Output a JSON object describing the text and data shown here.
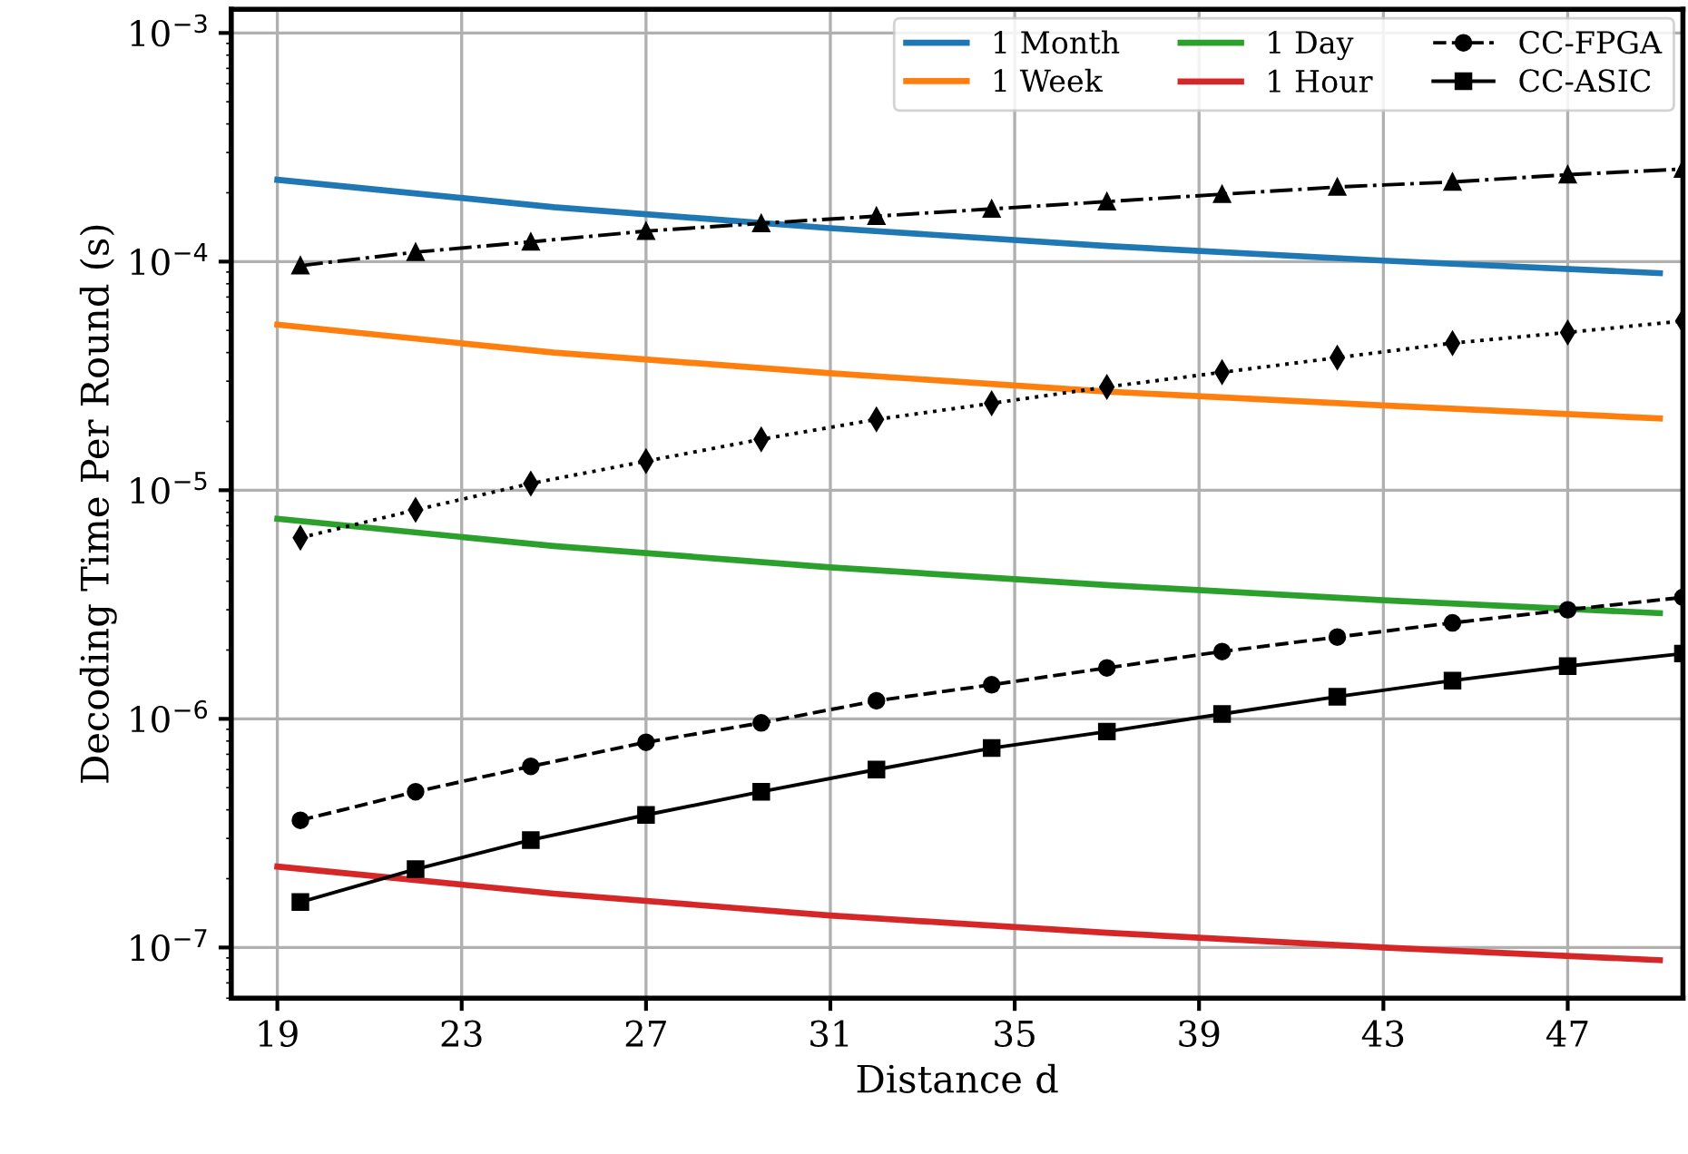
{
  "chart_data": {
    "type": "line",
    "xlabel": "Distance d",
    "ylabel": "Decoding Time Per Round (s)",
    "log": "y",
    "xlim": [
      18,
      49.5
    ],
    "xticks": [
      19,
      23,
      27,
      31,
      35,
      39,
      43,
      47
    ],
    "ylim": [
      6e-08,
      0.00127
    ],
    "yticks": [
      {
        "value": 1e-07,
        "label": "10$^{−7}$"
      },
      {
        "value": 1e-06,
        "label": "10$^{−6}$"
      },
      {
        "value": 1e-05,
        "label": "10$^{−5}$"
      },
      {
        "value": 0.0001,
        "label": "10$^{−4}$"
      },
      {
        "value": 0.001,
        "label": "10$^{−3}$"
      }
    ],
    "grid": true,
    "legend": "top right",
    "series": [
      {
        "name": "1 Month",
        "color": "#1f77b4",
        "marker": "none",
        "line_style": "solid",
        "x": [
          19,
          25,
          31,
          37,
          43,
          49
        ],
        "values": [
          0.000228,
          0.000173,
          0.00014,
          0.000117,
          0.000101,
          8.9e-05
        ]
      },
      {
        "name": "1 Week",
        "color": "#ff7f0e",
        "marker": "none",
        "line_style": "solid",
        "x": [
          19,
          25,
          31,
          37,
          43,
          49
        ],
        "values": [
          5.3e-05,
          4e-05,
          3.25e-05,
          2.7e-05,
          2.35e-05,
          2.06e-05
        ]
      },
      {
        "name": "1 Day",
        "color": "#2ca02c",
        "marker": "none",
        "line_style": "solid",
        "x": [
          19,
          25,
          31,
          37,
          43,
          49
        ],
        "values": [
          7.5e-06,
          5.7e-06,
          4.6e-06,
          3.85e-06,
          3.3e-06,
          2.9e-06
        ]
      },
      {
        "name": "1 Hour",
        "color": "#d62728",
        "marker": "none",
        "line_style": "solid",
        "x": [
          19,
          25,
          31,
          37,
          43,
          49
        ],
        "values": [
          2.26e-07,
          1.72e-07,
          1.38e-07,
          1.16e-07,
          1e-07,
          8.8e-08
        ]
      },
      {
        "color": "#000000",
        "marker": "triangle",
        "line_style": "dashdot",
        "x": [
          19.5,
          22,
          24.5,
          27,
          29.5,
          32,
          34.5,
          37,
          39.5,
          42,
          44.5,
          47,
          49.5
        ],
        "values": [
          9.6e-05,
          0.00011,
          0.000122,
          0.000136,
          0.000147,
          0.000158,
          0.00017,
          0.000183,
          0.000197,
          0.000212,
          0.000223,
          0.00024,
          0.000254
        ]
      },
      {
        "color": "#000000",
        "marker": "diamond",
        "line_style": "dotted",
        "x": [
          19.5,
          22,
          24.5,
          27,
          29.5,
          32,
          34.5,
          37,
          39.5,
          42,
          44.5,
          47,
          49.5
        ],
        "values": [
          6.2e-06,
          8.2e-06,
          1.07e-05,
          1.34e-05,
          1.67e-05,
          2.04e-05,
          2.4e-05,
          2.83e-05,
          3.28e-05,
          3.8e-05,
          4.4e-05,
          4.9e-05,
          5.5e-05
        ]
      },
      {
        "name": "CC-FPGA",
        "color": "#000000",
        "marker": "circle",
        "line_style": "dashed",
        "x": [
          19.5,
          22,
          24.5,
          27,
          29.5,
          32,
          34.5,
          37,
          39.5,
          42,
          44.5,
          47,
          49.5
        ],
        "values": [
          3.6e-07,
          4.8e-07,
          6.2e-07,
          7.9e-07,
          9.6e-07,
          1.2e-06,
          1.41e-06,
          1.67e-06,
          1.97e-06,
          2.28e-06,
          2.63e-06,
          3e-06,
          3.4e-06
        ]
      },
      {
        "name": "CC-ASIC",
        "color": "#000000",
        "marker": "square",
        "line_style": "solid",
        "x": [
          19.5,
          22,
          24.5,
          27,
          29.5,
          32,
          34.5,
          37,
          39.5,
          42,
          44.5,
          47,
          49.5
        ],
        "values": [
          1.58e-07,
          2.2e-07,
          2.95e-07,
          3.8e-07,
          4.8e-07,
          6e-07,
          7.45e-07,
          8.8e-07,
          1.05e-06,
          1.25e-06,
          1.47e-06,
          1.7e-06,
          1.93e-06
        ]
      }
    ]
  }
}
